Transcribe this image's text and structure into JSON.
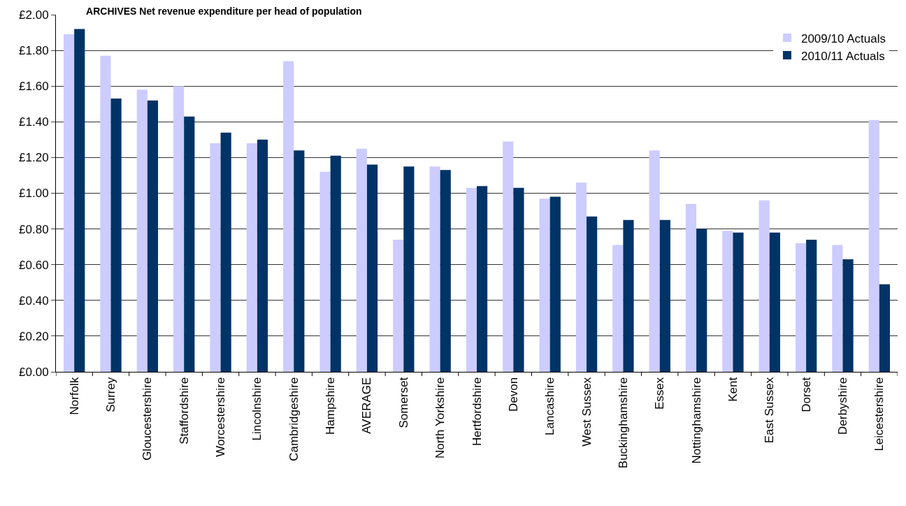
{
  "chart_data": {
    "type": "bar",
    "title": "ARCHIVES Net revenue expenditure per head of population",
    "categories": [
      "Norfolk",
      "Surrey",
      "Gloucestershire",
      "Staffordshire",
      "Worcestershire",
      "Lincolnshire",
      "Cambridgeshire",
      "Hampshire",
      "AVERAGE",
      "Somerset",
      "North Yorkshire",
      "Hertfordshire",
      "Devon",
      "Lancashire",
      "West Sussex",
      "Buckinghamshire",
      "Essex",
      "Nottinghamshire",
      "Kent",
      "East Sussex",
      "Dorset",
      "Derbyshire",
      "Leicestershire"
    ],
    "series": [
      {
        "name": "2009/10 Actuals",
        "color": "#ccccff",
        "values": [
          1.89,
          1.77,
          1.58,
          1.6,
          1.28,
          1.28,
          1.74,
          1.12,
          1.25,
          0.74,
          1.15,
          1.03,
          1.29,
          0.97,
          1.06,
          0.71,
          1.24,
          0.94,
          0.79,
          0.96,
          0.72,
          0.71,
          1.41
        ]
      },
      {
        "name": "2010/11 Actuals",
        "color": "#003366",
        "values": [
          1.92,
          1.53,
          1.52,
          1.43,
          1.34,
          1.3,
          1.24,
          1.21,
          1.16,
          1.15,
          1.13,
          1.04,
          1.03,
          0.98,
          0.87,
          0.85,
          0.85,
          0.8,
          0.78,
          0.78,
          0.74,
          0.63,
          0.49
        ]
      }
    ],
    "ylim": [
      0,
      2
    ],
    "yticks": [
      {
        "value": 0,
        "label": "£0.00"
      },
      {
        "value": 0.2,
        "label": "£0.20"
      },
      {
        "value": 0.4,
        "label": "£0.40"
      },
      {
        "value": 0.6,
        "label": "£0.60"
      },
      {
        "value": 0.8,
        "label": "£0.80"
      },
      {
        "value": 1,
        "label": "£1.00"
      },
      {
        "value": 1.2,
        "label": "£1.20"
      },
      {
        "value": 1.4,
        "label": "£1.40"
      },
      {
        "value": 1.6,
        "label": "£1.60"
      },
      {
        "value": 1.8,
        "label": "£1.80"
      },
      {
        "value": 2,
        "label": "£2.00"
      }
    ],
    "grid": "y",
    "legend": "top right"
  }
}
